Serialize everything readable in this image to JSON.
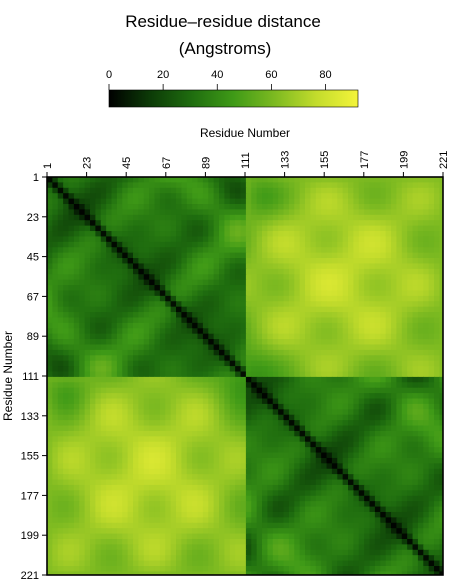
{
  "chart_data": {
    "type": "heatmap",
    "title_line1": "Residue–residue distance",
    "title_line2": "(Angstroms)",
    "xlabel": "Residue Number",
    "ylabel": "Residue Number",
    "x_ticks": [
      "1",
      "23",
      "45",
      "67",
      "89",
      "111",
      "133",
      "155",
      "177",
      "199",
      "221"
    ],
    "y_ticks": [
      "1",
      "23",
      "45",
      "67",
      "89",
      "111",
      "133",
      "155",
      "177",
      "199",
      "221"
    ],
    "colorbar": {
      "ticks": [
        "0",
        "20",
        "40",
        "60",
        "80"
      ],
      "range": [
        0,
        92
      ],
      "colors": [
        "#000000",
        "#0c3b07",
        "#1f6d0f",
        "#3f9a17",
        "#7dba21",
        "#c3dc2c",
        "#f4f43a"
      ]
    },
    "residue_range": [
      1,
      221
    ],
    "domains": [
      [
        1,
        111
      ],
      [
        111,
        221
      ]
    ],
    "value_range": [
      0,
      92
    ],
    "description_domain_means": {
      "intra_domain": 30,
      "inter_domain": 62
    }
  }
}
